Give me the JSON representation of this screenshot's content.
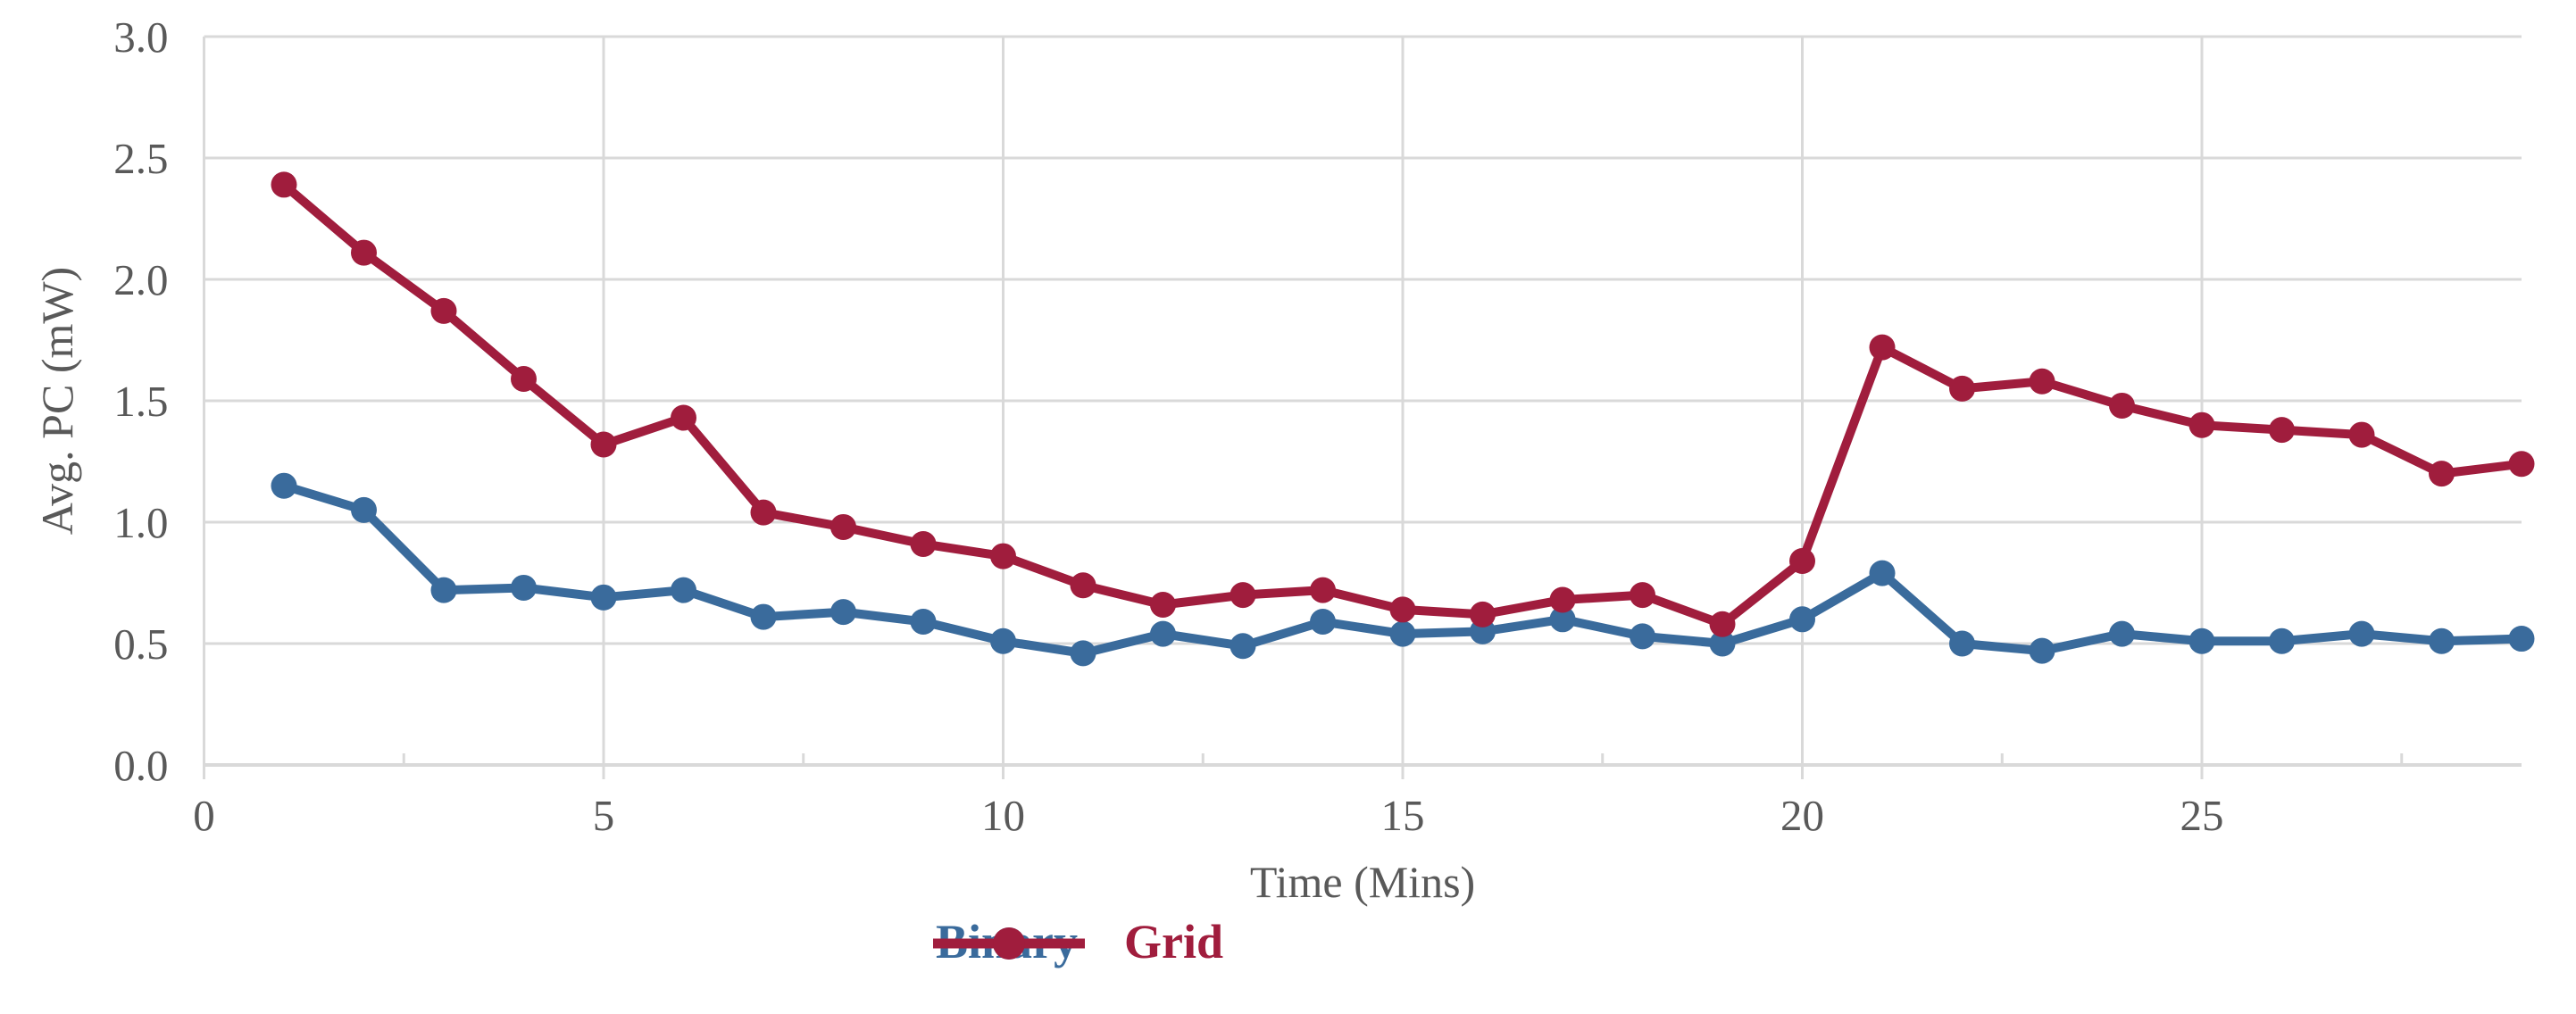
{
  "chart_data": {
    "type": "line",
    "title": "",
    "xlabel": "Time (Mins)",
    "ylabel": "Avg. PC (mW)",
    "x": [
      1,
      2,
      3,
      4,
      5,
      6,
      7,
      8,
      9,
      10,
      11,
      12,
      13,
      14,
      15,
      16,
      17,
      18,
      19,
      20,
      21,
      22,
      23,
      24,
      25,
      26,
      27,
      28,
      29
    ],
    "series": [
      {
        "name": "Binary",
        "color": "#3A6B9C",
        "values": [
          1.15,
          1.05,
          0.72,
          0.73,
          0.69,
          0.72,
          0.61,
          0.63,
          0.59,
          0.51,
          0.46,
          0.54,
          0.49,
          0.59,
          0.54,
          0.55,
          0.6,
          0.53,
          0.5,
          0.6,
          0.79,
          0.5,
          0.47,
          0.54,
          0.51,
          0.51,
          0.54,
          0.51,
          0.52
        ]
      },
      {
        "name": "Grid",
        "color": "#A01D3D",
        "values": [
          2.39,
          2.11,
          1.87,
          1.59,
          1.32,
          1.43,
          1.04,
          0.98,
          0.91,
          0.86,
          0.74,
          0.66,
          0.7,
          0.72,
          0.64,
          0.62,
          0.68,
          0.7,
          0.58,
          0.84,
          1.72,
          1.55,
          1.58,
          1.48,
          1.4,
          1.38,
          1.36,
          1.2,
          1.24
        ]
      }
    ],
    "xlim": [
      0,
      29
    ],
    "ylim": [
      0.0,
      3.0
    ],
    "x_tick_values": [
      0,
      5,
      10,
      15,
      20,
      25
    ],
    "x_tick_labels": [
      "0",
      "5",
      "10",
      "15",
      "20",
      "25"
    ],
    "x_minor_tick_values": [
      2.5,
      7.5,
      12.5,
      17.5,
      22.5,
      27.5
    ],
    "y_tick_values": [
      0.0,
      0.5,
      1.0,
      1.5,
      2.0,
      2.5,
      3.0
    ],
    "y_tick_labels": [
      "0.0",
      "0.5",
      "1.0",
      "1.5",
      "2.0",
      "2.5",
      "3.0"
    ],
    "grid": "horizontal-major and vertical-major on, light gray",
    "legend_position": "bottom-center"
  },
  "style": {
    "grid_color": "#D9D9D9",
    "axis_line_color": "#D9D9D9",
    "tick_label_color": "#595959",
    "background": "#FFFFFF"
  }
}
